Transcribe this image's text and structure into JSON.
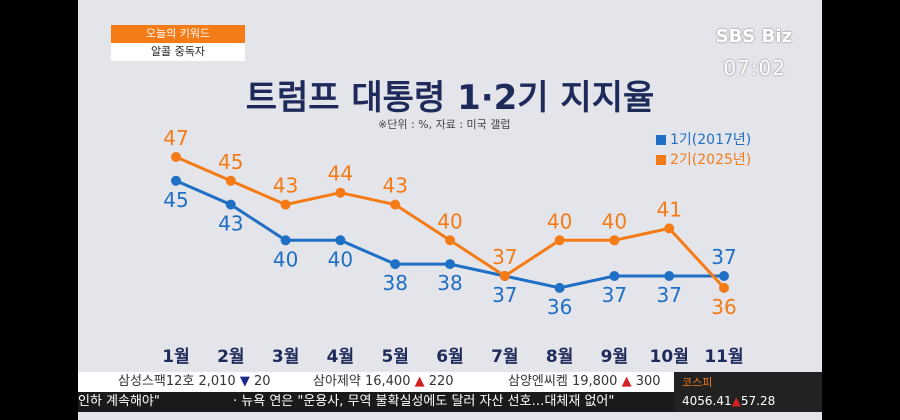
{
  "keyword": {
    "label": "오늘의 키워드",
    "value": "알콜 중독자"
  },
  "logo": "SBS Biz",
  "time": "07:02",
  "chart_data": {
    "type": "line",
    "title": "트럼프 대통령 1·2기 지지율",
    "subtitle": "※단위 : %, 자료 : 미국 갤럽",
    "categories": [
      "1월",
      "2월",
      "3월",
      "4월",
      "5월",
      "6월",
      "7월",
      "8월",
      "9월",
      "10월",
      "11월"
    ],
    "series": [
      {
        "name": "1기(2017년)",
        "color": "#1f6fc4",
        "values": [
          45,
          43,
          40,
          40,
          38,
          38,
          37,
          36,
          37,
          37,
          37
        ]
      },
      {
        "name": "2기(2025년)",
        "color": "#f47b16",
        "values": [
          47,
          45,
          43,
          44,
          43,
          40,
          37,
          40,
          40,
          41,
          36
        ]
      }
    ],
    "ylim": [
      34,
      48
    ],
    "grid": false,
    "legend": "top-right"
  },
  "ticker": {
    "stocks": [
      {
        "name": "삼성스팩12호",
        "price": "2,010",
        "dir": "down",
        "change": "20"
      },
      {
        "name": "삼아제약",
        "price": "16,400",
        "dir": "up",
        "change": "220"
      },
      {
        "name": "삼양엔씨켐",
        "price": "19,800",
        "dir": "up",
        "change": "300"
      }
    ],
    "news": [
      "인하 계속해야\"",
      "· 뉴욕 연은 \"운용사, 무역 불확실성에도 달러 자산 선호…대체재 없어\""
    ],
    "index": {
      "name": "코스피",
      "value": "4056.41",
      "dir": "up",
      "change": "57.28"
    }
  }
}
